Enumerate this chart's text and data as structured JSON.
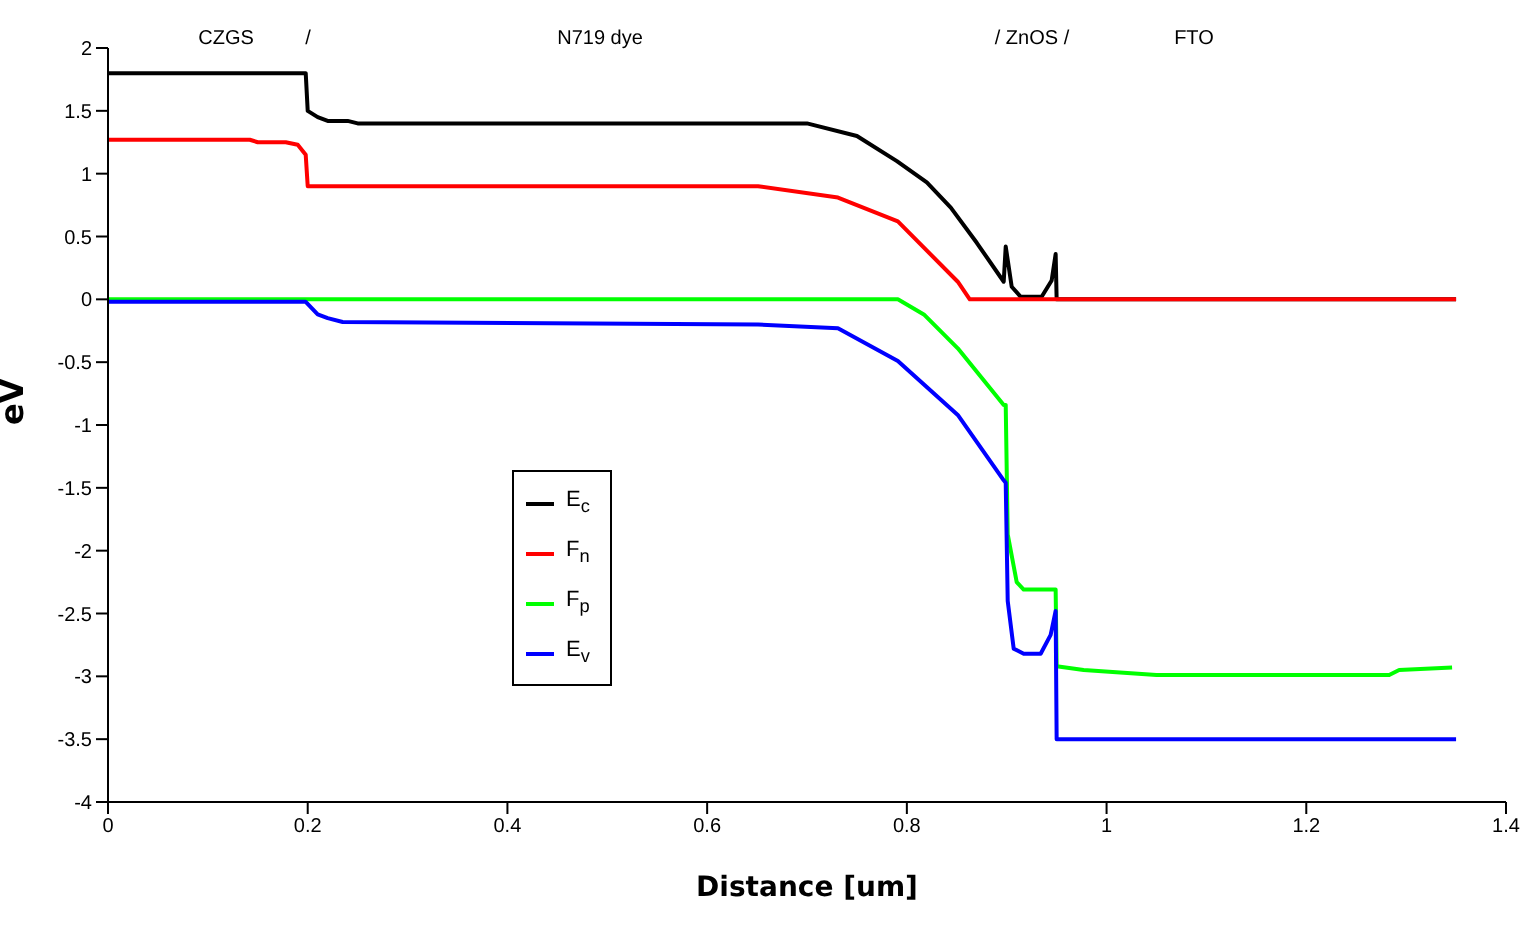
{
  "chart_data": {
    "type": "line",
    "xlabel": "Distance [um]",
    "ylabel": "eV",
    "xlim": [
      0,
      1.4
    ],
    "xticks": [
      0,
      0.2,
      0.4,
      0.6,
      0.8,
      1,
      1.2,
      1.4
    ],
    "ylim": [
      -4,
      2
    ],
    "yticks": [
      -4,
      -3.5,
      -3,
      -2.5,
      -2,
      -1.5,
      -1,
      -0.5,
      0,
      0.5,
      1,
      1.5,
      2
    ],
    "grid": false,
    "legend": "center left",
    "marker": "none",
    "line_style": "solid",
    "annotations": [
      "CZGS",
      "/",
      "N719 dye",
      "/ ZnOS /",
      "FTO"
    ],
    "series": [
      {
        "name": "E$_{c}$",
        "color": "#000000",
        "x": [
          0,
          0.198,
          0.2,
          0.21,
          0.22,
          0.24,
          0.25,
          0.7,
          0.75,
          0.79,
          0.82,
          0.844,
          0.87,
          0.897,
          0.899,
          0.905,
          0.914,
          0.935,
          0.945,
          0.949,
          0.95,
          1.35
        ],
        "values": [
          1.8,
          1.8,
          1.5,
          1.45,
          1.42,
          1.42,
          1.4,
          1.4,
          1.3,
          1.1,
          0.93,
          0.73,
          0.45,
          0.14,
          0.42,
          0.1,
          0.02,
          0.02,
          0.15,
          0.36,
          0,
          0
        ]
      },
      {
        "name": "F$_{n}$",
        "color": "#ff0000",
        "x": [
          0,
          0.142,
          0.15,
          0.178,
          0.19,
          0.198,
          0.2,
          0.651,
          0.731,
          0.791,
          0.851,
          0.863,
          1.35
        ],
        "values": [
          1.27,
          1.27,
          1.25,
          1.25,
          1.23,
          1.15,
          0.9,
          0.9,
          0.81,
          0.62,
          0.14,
          0,
          0
        ]
      },
      {
        "name": "F$_{p}$",
        "color": "#00ff00",
        "x": [
          0,
          0.791,
          0.817,
          0.851,
          0.897,
          0.899,
          0.901,
          0.91,
          0.917,
          0.949,
          0.95,
          0.977,
          1.05,
          1.283,
          1.293,
          1.346
        ],
        "values": [
          0,
          0,
          -0.12,
          -0.39,
          -0.84,
          -0.84,
          -1.87,
          -2.25,
          -2.31,
          -2.31,
          -2.92,
          -2.95,
          -2.99,
          -2.99,
          -2.95,
          -2.93
        ]
      },
      {
        "name": "E$_{v}$",
        "color": "#0000ff",
        "x": [
          0,
          0.198,
          0.21,
          0.22,
          0.235,
          0.651,
          0.731,
          0.791,
          0.851,
          0.897,
          0.899,
          0.901,
          0.907,
          0.917,
          0.934,
          0.944,
          0.949,
          0.95,
          1.35
        ],
        "values": [
          -0.02,
          -0.02,
          -0.12,
          -0.15,
          -0.18,
          -0.2,
          -0.23,
          -0.49,
          -0.92,
          -1.44,
          -1.46,
          -2.4,
          -2.78,
          -2.82,
          -2.82,
          -2.67,
          -2.48,
          -3.5,
          -3.5
        ]
      }
    ]
  }
}
